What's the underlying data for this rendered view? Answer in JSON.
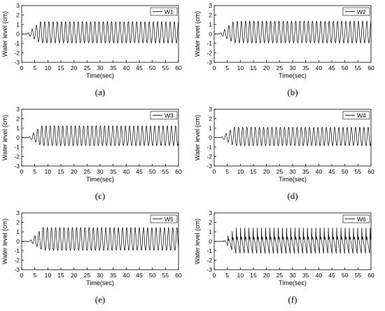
{
  "figure": {
    "x_label": "Time(sec)",
    "y_label": "Water level (cm)",
    "x_ticks": [
      0,
      5,
      10,
      15,
      20,
      25,
      30,
      35,
      40,
      45,
      50,
      55,
      60
    ],
    "y_ticks": [
      -3,
      -2,
      -1,
      0,
      1,
      2,
      3
    ]
  },
  "chart_data": [
    {
      "type": "line",
      "panel": "(a)",
      "xlabel": "Time(sec)",
      "ylabel": "Water level (cm)",
      "xlim": [
        0,
        60
      ],
      "ylim": [
        -3,
        3
      ],
      "series": [
        {
          "name": "W1",
          "period_s": 1.6,
          "onset_s": 2.0,
          "steady_from_s": 7.0,
          "crest_cm": 1.3,
          "trough_cm": -0.95
        }
      ]
    },
    {
      "type": "line",
      "panel": "(b)",
      "xlabel": "Time(sec)",
      "ylabel": "Water level (cm)",
      "xlim": [
        0,
        60
      ],
      "ylim": [
        -3,
        3
      ],
      "series": [
        {
          "name": "W2",
          "period_s": 1.6,
          "onset_s": 2.0,
          "steady_from_s": 7.5,
          "crest_cm": 1.35,
          "trough_cm": -0.95
        }
      ]
    },
    {
      "type": "line",
      "panel": "(c)",
      "xlabel": "Time(sec)",
      "ylabel": "Water level (cm)",
      "xlim": [
        0,
        60
      ],
      "ylim": [
        -3,
        3
      ],
      "series": [
        {
          "name": "W3",
          "period_s": 1.6,
          "onset_s": 2.5,
          "steady_from_s": 7.5,
          "crest_cm": 1.25,
          "trough_cm": -0.85
        }
      ]
    },
    {
      "type": "line",
      "panel": "(d)",
      "xlabel": "Time(sec)",
      "ylabel": "Water level (cm)",
      "xlim": [
        0,
        60
      ],
      "ylim": [
        -3,
        3
      ],
      "series": [
        {
          "name": "W4",
          "period_s": 1.6,
          "onset_s": 2.5,
          "steady_from_s": 7.5,
          "crest_cm": 1.1,
          "trough_cm": -0.85
        }
      ]
    },
    {
      "type": "line",
      "panel": "(e)",
      "xlabel": "Time(sec)",
      "ylabel": "Water level (cm)",
      "xlim": [
        0,
        60
      ],
      "ylim": [
        -3,
        3
      ],
      "series": [
        {
          "name": "W5",
          "period_s": 1.6,
          "onset_s": 3.0,
          "steady_from_s": 8.0,
          "crest_cm": 1.45,
          "trough_cm": -0.95
        }
      ]
    },
    {
      "type": "line",
      "panel": "(f)",
      "xlabel": "Time(sec)",
      "ylabel": "Water level (cm)",
      "xlim": [
        0,
        60
      ],
      "ylim": [
        -3,
        3
      ],
      "series": [
        {
          "name": "W6",
          "period_s": 1.6,
          "onset_s": 3.5,
          "steady_from_s": 8.0,
          "crest_cm": 1.5,
          "trough_cm": -1.3,
          "secondary_crest_cm": 0.5
        }
      ]
    }
  ]
}
